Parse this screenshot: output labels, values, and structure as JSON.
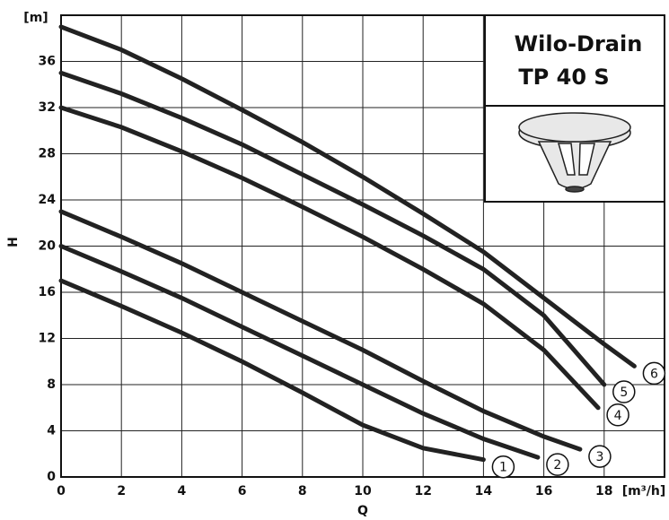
{
  "chart_data": {
    "type": "line",
    "title": "Wilo-Drain",
    "subtitle": "TP 40 S",
    "x_label": "Q",
    "x_unit": "[m³/h]",
    "y_label": "H",
    "y_unit": "[m]",
    "xlim": [
      0,
      20
    ],
    "ylim": [
      0,
      40
    ],
    "xticks": [
      0,
      2,
      4,
      6,
      8,
      10,
      12,
      14,
      16,
      18
    ],
    "yticks": [
      0,
      4,
      8,
      12,
      16,
      20,
      24,
      28,
      32,
      36
    ],
    "grid": true,
    "series": [
      {
        "name": "1",
        "color": "#222222",
        "x": [
          0,
          2,
          4,
          6,
          8,
          10,
          12,
          14
        ],
        "values": [
          17,
          14.8,
          12.5,
          10,
          7.3,
          4.5,
          2.5,
          1.5
        ]
      },
      {
        "name": "2",
        "color": "#222222",
        "x": [
          0,
          2,
          4,
          6,
          8,
          10,
          12,
          14,
          15.8
        ],
        "values": [
          20,
          17.8,
          15.5,
          13,
          10.5,
          8,
          5.5,
          3.3,
          1.7
        ]
      },
      {
        "name": "3",
        "color": "#222222",
        "x": [
          0,
          2,
          4,
          6,
          8,
          10,
          12,
          14,
          16,
          17.2
        ],
        "values": [
          23,
          20.8,
          18.5,
          16,
          13.5,
          11,
          8.3,
          5.7,
          3.5,
          2.4
        ]
      },
      {
        "name": "4",
        "color": "#222222",
        "x": [
          0,
          2,
          4,
          6,
          8,
          10,
          12,
          14,
          16,
          17.8
        ],
        "values": [
          32,
          30.3,
          28.2,
          25.9,
          23.4,
          20.8,
          18,
          15,
          11,
          6
        ]
      },
      {
        "name": "5",
        "color": "#222222",
        "x": [
          0,
          2,
          4,
          6,
          8,
          10,
          12,
          14,
          16,
          18
        ],
        "values": [
          35,
          33.2,
          31.1,
          28.8,
          26.2,
          23.6,
          20.9,
          18,
          14,
          8
        ]
      },
      {
        "name": "6",
        "color": "#222222",
        "x": [
          0,
          2,
          4,
          6,
          8,
          10,
          12,
          14,
          16,
          18,
          19
        ],
        "values": [
          39,
          37,
          34.5,
          31.8,
          29,
          26,
          22.8,
          19.5,
          15.5,
          11.5,
          9.6
        ]
      }
    ]
  }
}
